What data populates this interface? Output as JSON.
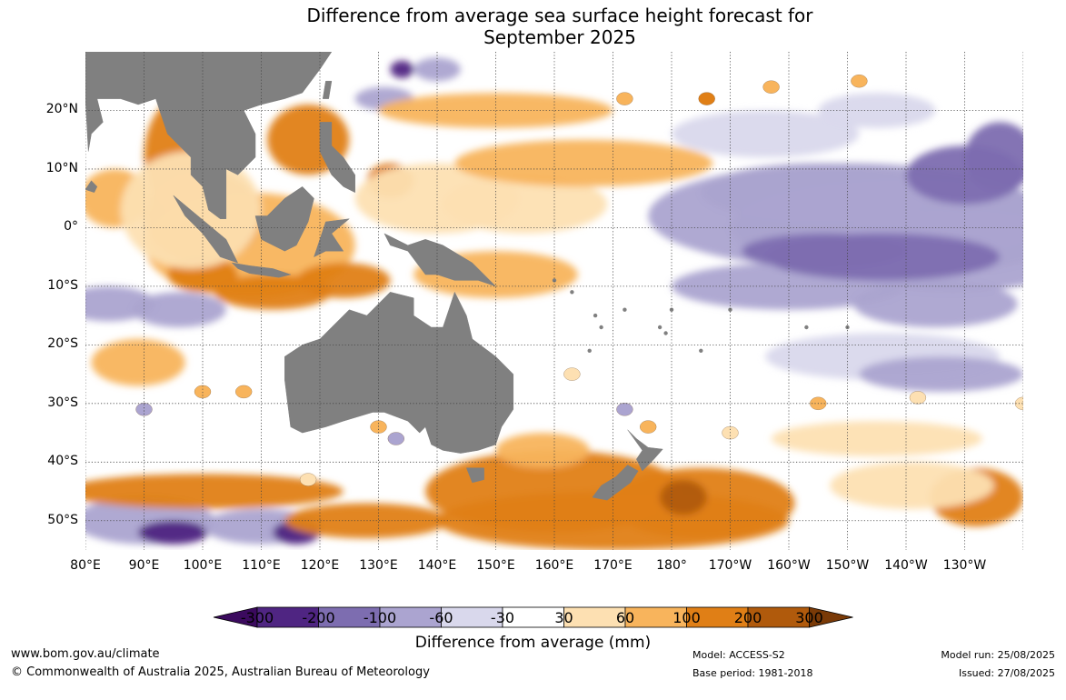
{
  "title": {
    "line1": "Difference from average sea surface height forecast for",
    "line2": "September 2025"
  },
  "map": {
    "lat_labels": [
      "20°N",
      "10°N",
      "0°",
      "10°S",
      "20°S",
      "30°S",
      "40°S",
      "50°S"
    ],
    "lon_labels": [
      "80°E",
      "90°E",
      "100°E",
      "110°E",
      "120°E",
      "130°E",
      "140°E",
      "150°E",
      "160°E",
      "170°E",
      "180°",
      "170°W",
      "160°W",
      "150°W",
      "140°W",
      "130°W"
    ],
    "lat_range": [
      -55,
      30
    ],
    "lon_range": [
      80,
      240
    ],
    "land_color": "#808080",
    "grid_style": "dotted"
  },
  "legend": {
    "title": "Difference from average (mm)",
    "ticks": [
      "-300",
      "-200",
      "-100",
      "-60",
      "-30",
      "30",
      "60",
      "100",
      "200",
      "300"
    ],
    "colors": [
      "#3b0a5e",
      "#4f2582",
      "#7d6db0",
      "#aba4d0",
      "#d9d8ec",
      "#ffffff",
      "#fde0b2",
      "#f8b45c",
      "#e07f16",
      "#b05a0c",
      "#7a3a07"
    ]
  },
  "footer": {
    "website": "www.bom.gov.au/climate",
    "copyright": "© Commonwealth of Australia 2025, Australian Bureau of Meteorology",
    "model": "Model: ACCESS-S2",
    "base_period": "Base period: 1981-2018",
    "model_run": "Model run: 25/08/2025",
    "issued": "Issued: 27/08/2025"
  }
}
